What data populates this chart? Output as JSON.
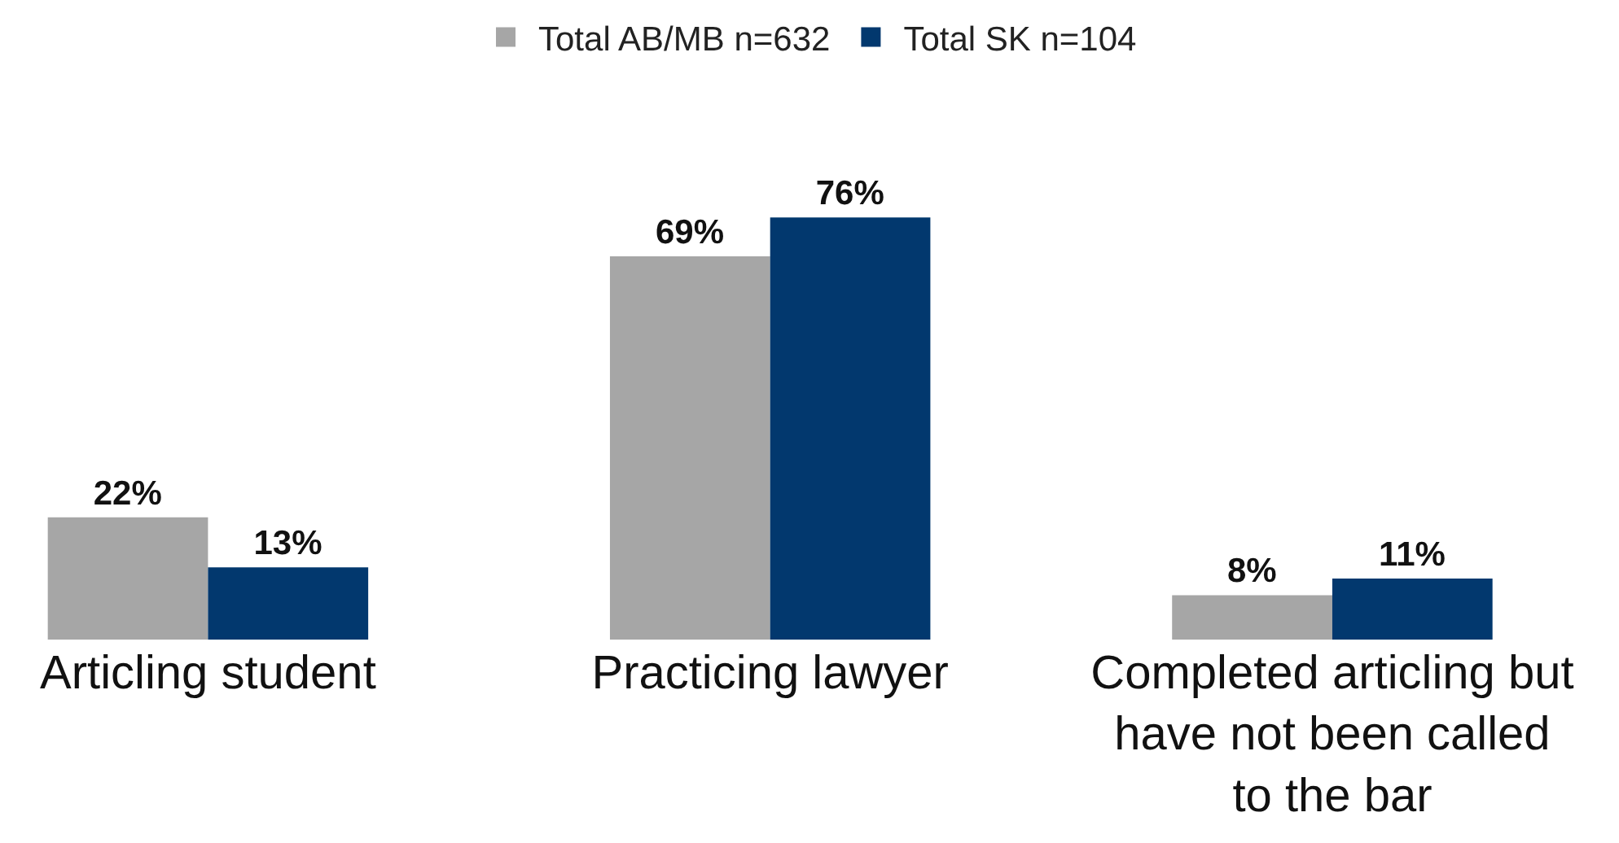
{
  "chart_data": {
    "type": "bar",
    "categories": [
      "Articling student",
      "Practicing lawyer",
      "Completed articling but have not been called to the bar"
    ],
    "series": [
      {
        "name": "Total AB/MB n=632",
        "color": "#a6a6a6",
        "values": [
          22,
          69,
          8
        ],
        "value_labels": [
          "22%",
          "69%",
          "8%"
        ]
      },
      {
        "name": "Total SK n=104",
        "color": "#02386e",
        "values": [
          13,
          76,
          11
        ],
        "value_labels": [
          "13%",
          "76%",
          "11%"
        ]
      }
    ],
    "tick_labels": "x",
    "legend": "top"
  }
}
